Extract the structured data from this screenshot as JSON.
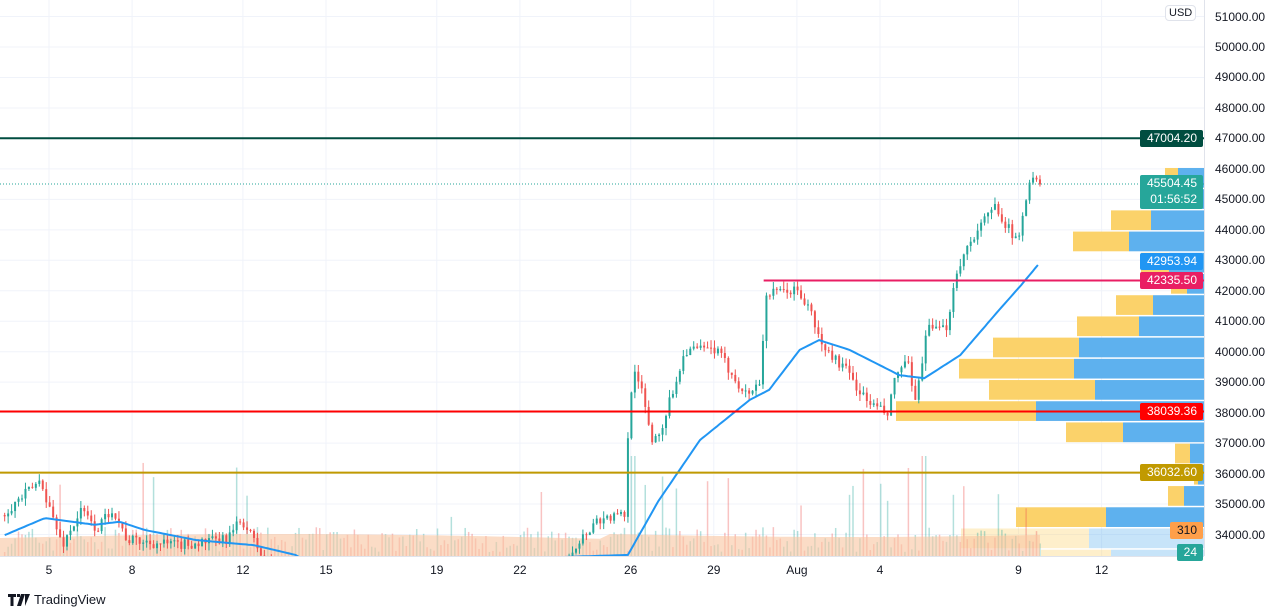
{
  "currency": "USD",
  "brand": "TradingView",
  "chart_data": {
    "type": "candlestick",
    "x_ticks": [
      {
        "label": "5",
        "day": 0
      },
      {
        "label": "8",
        "day": 3
      },
      {
        "label": "12",
        "day": 7
      },
      {
        "label": "15",
        "day": 10
      },
      {
        "label": "19",
        "day": 14
      },
      {
        "label": "22",
        "day": 17
      },
      {
        "label": "26",
        "day": 21
      },
      {
        "label": "29",
        "day": 24
      },
      {
        "label": "Aug",
        "day": 27
      },
      {
        "label": "4",
        "day": 30
      },
      {
        "label": "9",
        "day": 35
      },
      {
        "label": "12",
        "day": 38
      }
    ],
    "y_ticks": [
      "51000.00",
      "50000.00",
      "49000.00",
      "48000.00",
      "47000.00",
      "46000.00",
      "45000.00",
      "44000.00",
      "43000.00",
      "42000.00",
      "41000.00",
      "40000.00",
      "39000.00",
      "38000.00",
      "37000.00",
      "36000.00",
      "35000.00",
      "34000.00"
    ],
    "ylim": [
      33300,
      51300
    ],
    "price_path": [
      [
        -1.6,
        34640
      ],
      [
        -0.15,
        35790
      ],
      [
        0.05,
        35130
      ],
      [
        0.6,
        33650
      ],
      [
        1.3,
        34800
      ],
      [
        1.85,
        34150
      ],
      [
        2.4,
        34870
      ],
      [
        2.95,
        33820
      ],
      [
        4.7,
        33650
      ],
      [
        6.5,
        33820
      ],
      [
        7.1,
        34480
      ],
      [
        7.8,
        33330
      ],
      [
        8.5,
        32600
      ],
      [
        18.5,
        32700
      ],
      [
        19.0,
        33490
      ],
      [
        19.9,
        34480
      ],
      [
        20.9,
        34640
      ],
      [
        21.1,
        38580
      ],
      [
        21.3,
        39560
      ],
      [
        21.9,
        37100
      ],
      [
        22.2,
        37400
      ],
      [
        23.1,
        40060
      ],
      [
        24.2,
        40060
      ],
      [
        25.3,
        38580
      ],
      [
        25.8,
        39000
      ],
      [
        26.0,
        41860
      ],
      [
        27.1,
        42030
      ],
      [
        27.6,
        41370
      ],
      [
        28.0,
        40220
      ],
      [
        28.9,
        39400
      ],
      [
        29.6,
        38420
      ],
      [
        30.4,
        37920
      ],
      [
        30.7,
        39230
      ],
      [
        31.1,
        39730
      ],
      [
        31.4,
        38250
      ],
      [
        31.8,
        40710
      ],
      [
        32.5,
        40710
      ],
      [
        32.9,
        42680
      ],
      [
        33.4,
        43670
      ],
      [
        34.3,
        44810
      ],
      [
        35.1,
        43500
      ],
      [
        35.4,
        45140
      ],
      [
        35.6,
        45900
      ],
      [
        35.8,
        45504.45
      ]
    ],
    "moving_average": [
      [
        -1.6,
        33980
      ],
      [
        -0.15,
        34540
      ],
      [
        1.65,
        34320
      ],
      [
        2.55,
        34420
      ],
      [
        3.45,
        34150
      ],
      [
        5.3,
        33820
      ],
      [
        7.4,
        33650
      ],
      [
        8.9,
        33330
      ],
      [
        9.5,
        33000
      ],
      [
        20.9,
        33330
      ],
      [
        22.0,
        35100
      ],
      [
        23.5,
        37100
      ],
      [
        25.3,
        38420
      ],
      [
        26.0,
        38750
      ],
      [
        27.1,
        40060
      ],
      [
        27.8,
        40380
      ],
      [
        28.9,
        40060
      ],
      [
        30.7,
        39230
      ],
      [
        31.6,
        39130
      ],
      [
        32.9,
        39890
      ],
      [
        34.3,
        41370
      ],
      [
        35.1,
        42190
      ],
      [
        35.8,
        42953.94
      ]
    ],
    "volume_profile": {
      "bin_top": 46030,
      "bin_size": 696,
      "rows": [
        {
          "up": 13,
          "down": 26
        },
        {
          "up": 22,
          "down": 23
        },
        {
          "up": 40,
          "down": 53
        },
        {
          "up": 56,
          "down": 75
        },
        {
          "up": 28,
          "down": 35
        },
        {
          "up": 16,
          "down": 17
        },
        {
          "up": 37,
          "down": 51
        },
        {
          "up": 62,
          "down": 65
        },
        {
          "up": 86,
          "down": 125
        },
        {
          "up": 115,
          "down": 130
        },
        {
          "up": 106,
          "down": 109
        },
        {
          "up": 140,
          "down": 168
        },
        {
          "up": 57,
          "down": 81
        },
        {
          "up": 15,
          "down": 14
        },
        {
          "up": 4,
          "down": 6
        },
        {
          "up": 16,
          "down": 20
        },
        {
          "up": 90,
          "down": 98
        },
        {
          "up": 128,
          "down": 115
        },
        {
          "up": 70,
          "down": 93
        }
      ]
    },
    "horizontal_lines": [
      {
        "price": "47004.20",
        "color": "#004d40",
        "from_day": null
      },
      {
        "price": "42335.50",
        "color": "#e91e63",
        "from_day": 25.8
      },
      {
        "price": "38039.36",
        "color": "#ff0000",
        "from_day": null
      },
      {
        "price": "36032.60",
        "color": "#c19a00",
        "from_day": null
      }
    ],
    "last_price": {
      "value": "45504.45",
      "countdown": "01:56:52",
      "color": "#26a69a"
    },
    "ma_label": {
      "value": "42953.94",
      "color": "#2196f3"
    },
    "volume_label": {
      "value": "310",
      "color": "#ff9f4a"
    },
    "volume_ma_label": {
      "value": "24",
      "color": "#26a69a"
    },
    "colors": {
      "up": "#26a69a",
      "down": "#ef5350",
      "ma": "#2196f3",
      "vp_up": "#fbd26a",
      "vp_down": "#5eb1ee",
      "volume_ma": "#f9c4a0"
    }
  }
}
